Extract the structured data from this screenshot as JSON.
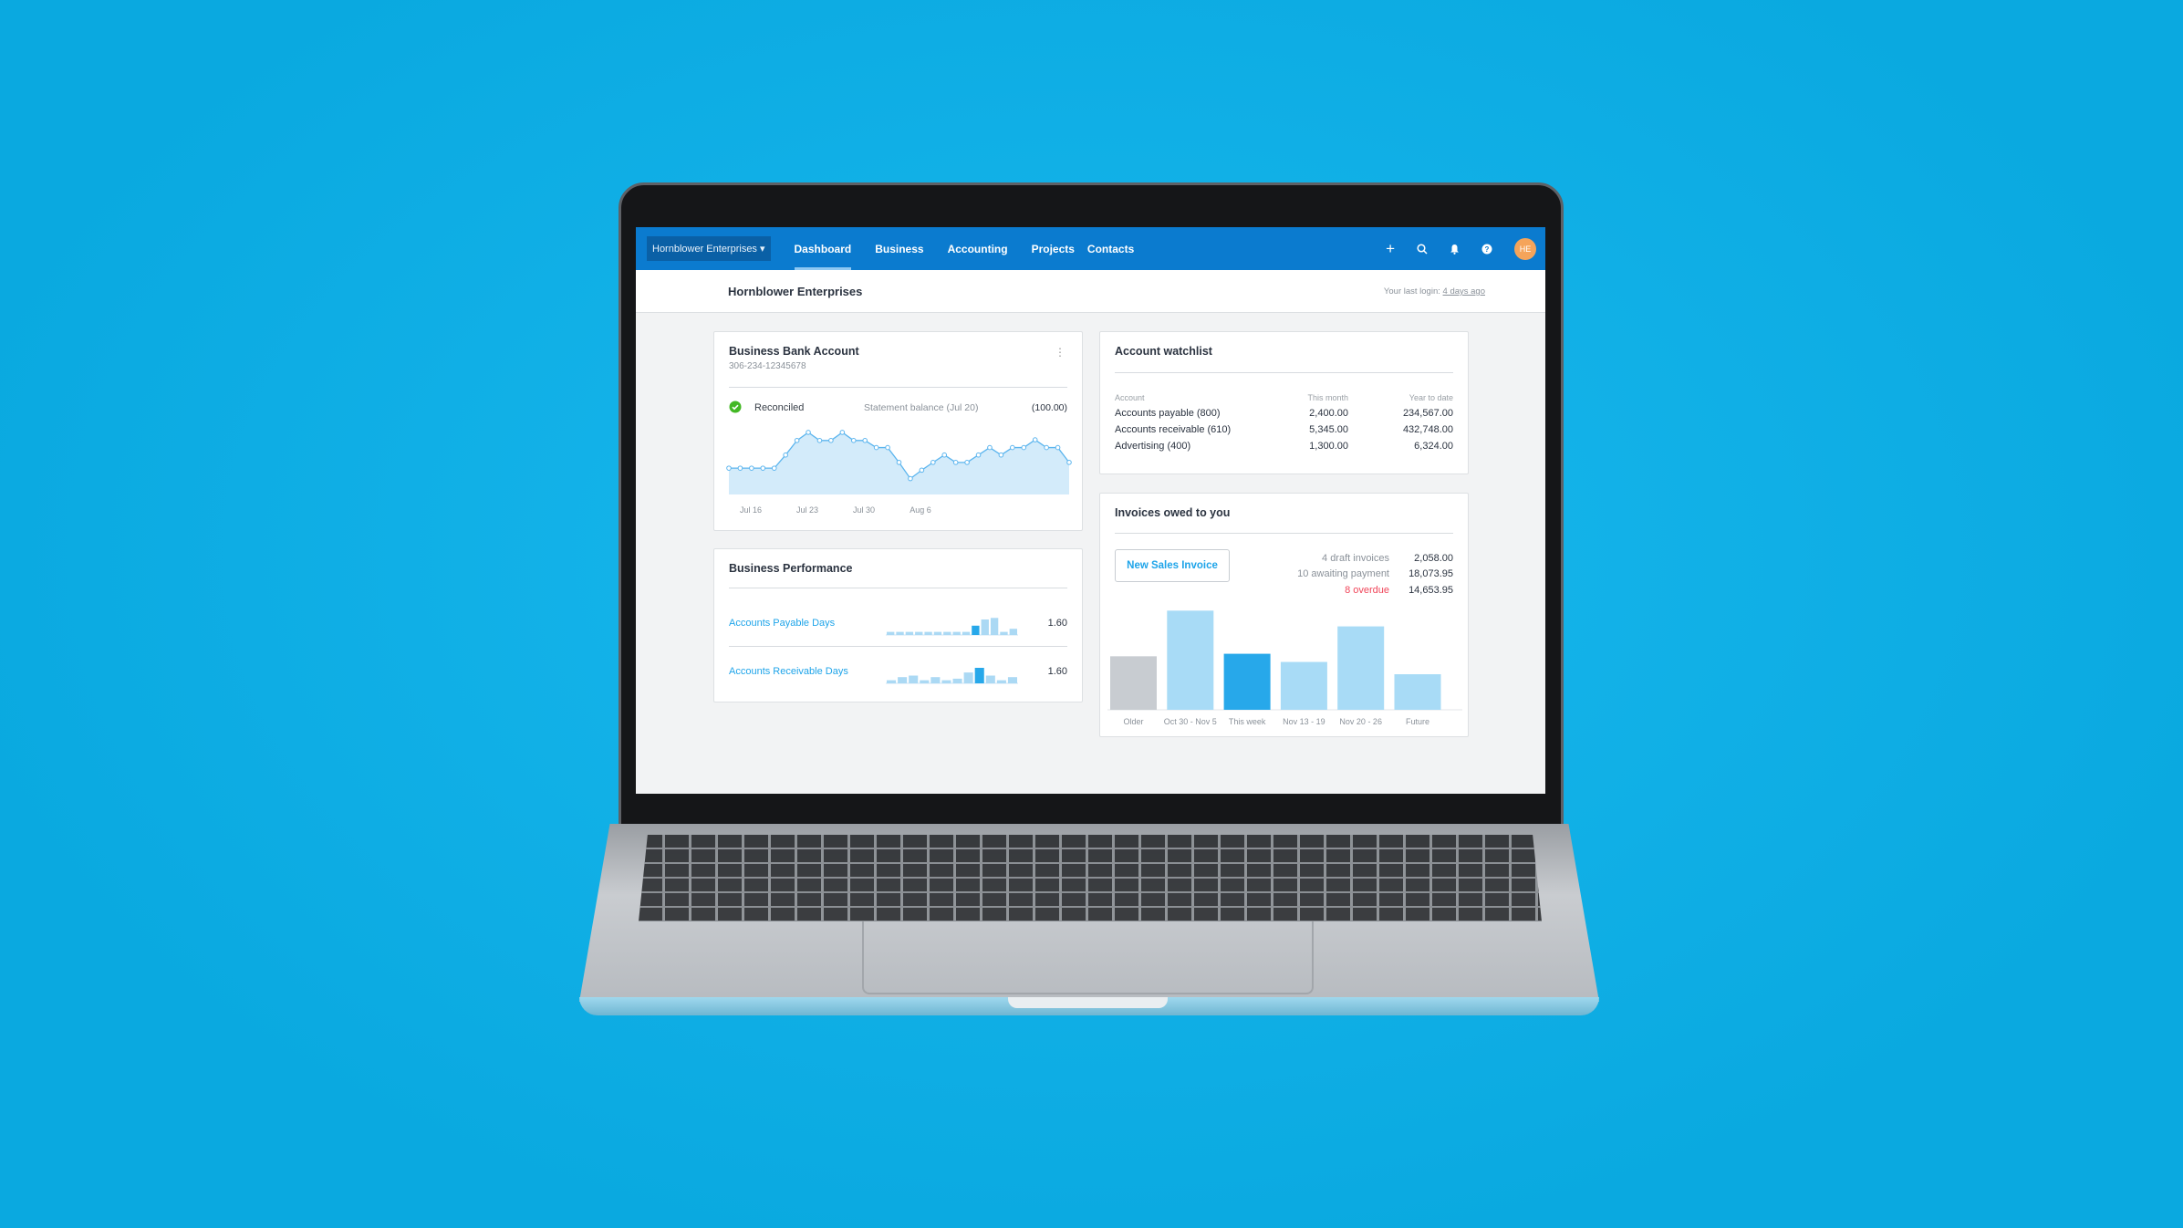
{
  "nav": {
    "org_switcher": "Hornblower Enterprises ▾",
    "tabs": [
      {
        "label": "Dashboard",
        "active": true
      },
      {
        "label": "Business",
        "active": false
      },
      {
        "label": "Accounting",
        "active": false
      },
      {
        "label": "Projects",
        "active": false
      },
      {
        "label": "Contacts",
        "active": false
      }
    ],
    "icons": [
      "plus-icon",
      "search-icon",
      "bell-icon",
      "help-icon"
    ],
    "avatar_initials": "HE",
    "color": "#0b7bcf"
  },
  "subheader": {
    "title": "Hornblower Enterprises",
    "last_login_label": "Your last login:",
    "last_login_value": "4 days ago"
  },
  "bank_account": {
    "title": "Business Bank Account",
    "account_number": "306-234-12345678",
    "status": "Reconciled",
    "statement_label": "Statement balance (Jul 20)",
    "statement_value": "(100.00)",
    "chart_data": {
      "type": "area",
      "x_tick_labels": [
        "Jul 16",
        "Jul 23",
        "Jul 30",
        "Aug 6"
      ],
      "values": [
        78,
        78,
        78,
        78,
        78,
        117,
        160,
        184,
        160,
        160,
        184,
        160,
        160,
        139,
        139,
        95,
        47,
        72,
        95,
        117,
        95,
        95,
        117,
        139,
        117,
        139,
        139,
        162,
        139,
        139,
        95
      ]
    }
  },
  "watchlist": {
    "title": "Account watchlist",
    "columns": [
      "Account",
      "This month",
      "Year to date"
    ],
    "rows": [
      [
        "Accounts payable (800)",
        "2,400.00",
        "234,567.00"
      ],
      [
        "Accounts receivable (610)",
        "5,345.00",
        "432,748.00"
      ],
      [
        "Advertising (400)",
        "1,300.00",
        "6,324.00"
      ]
    ]
  },
  "performance": {
    "title": "Business Performance",
    "rows": [
      {
        "label": "Accounts Payable Days",
        "value": "1.60",
        "spark": [
          2,
          2,
          2,
          2,
          2,
          2,
          2,
          2,
          2,
          6,
          10,
          11,
          2,
          4
        ],
        "highlight": 9
      },
      {
        "label": "Accounts Receivable Days",
        "value": "1.60",
        "spark": [
          2,
          4,
          5,
          2,
          4,
          2,
          3,
          7,
          10,
          5,
          2,
          4
        ],
        "highlight": 8
      }
    ]
  },
  "invoices": {
    "title": "Invoices owed to you",
    "new_button": "New Sales Invoice",
    "summary": [
      {
        "label": "4 draft invoices",
        "value": "2,058.00",
        "alert": false
      },
      {
        "label": "10 awaiting payment",
        "value": "18,073.95",
        "alert": false
      },
      {
        "label": "8 overdue",
        "value": "14,653.95",
        "alert": true
      }
    ],
    "chart_data": {
      "type": "bar",
      "categories": [
        "Older",
        "Oct 30 - Nov 5",
        "This week",
        "Nov 13 - 19",
        "Nov 20 - 26",
        "Future"
      ],
      "values": [
        170,
        315,
        178,
        152,
        265,
        113
      ],
      "colors": [
        "#c8ccd1",
        "#a8dbf6",
        "#27a8ea",
        "#a8dbf6",
        "#a8dbf6",
        "#a8dbf6"
      ]
    }
  }
}
